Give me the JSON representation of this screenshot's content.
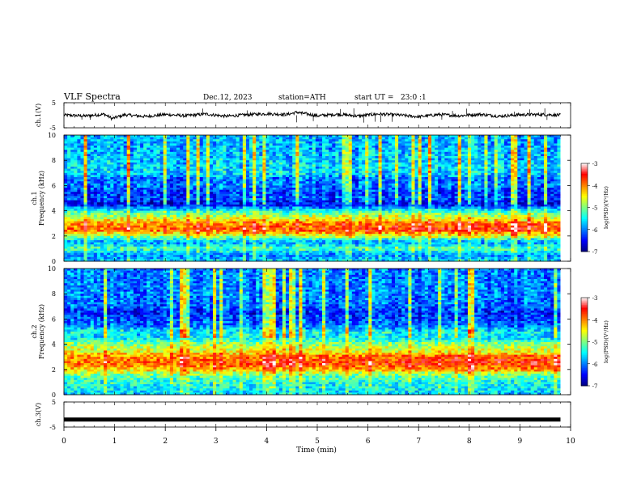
{
  "header": {
    "title": "VLF Spectra",
    "date": "Dec.12, 2023",
    "station": "station=ATH",
    "start_ut": "start UT =   23:0 :1"
  },
  "chart_data": [
    {
      "type": "line",
      "name": "ch1-waveform",
      "ylabel": "ch.1(V)",
      "ylim": [
        -5,
        5
      ],
      "yticks": [
        "5",
        "-5"
      ],
      "xlim": [
        0,
        10
      ],
      "x": [
        0,
        0.4,
        0.8,
        0.95,
        1.2,
        1.6,
        2.0,
        2.4,
        2.8,
        3.2,
        3.6,
        4.0,
        4.4,
        4.6,
        5.0,
        5.4,
        5.8,
        6.2,
        6.6,
        7.0,
        7.4,
        7.8,
        8.2,
        8.6,
        9.0,
        9.4,
        9.8
      ],
      "values": [
        0.1,
        -0.3,
        0.4,
        -1.3,
        0.2,
        -0.5,
        0.3,
        -0.2,
        0.5,
        -0.4,
        0.2,
        0.6,
        0.3,
        1.2,
        -0.2,
        0.4,
        -0.3,
        0.5,
        0.1,
        -0.6,
        0.3,
        -0.2,
        0.4,
        -0.4,
        0.2,
        0.3,
        0.1
      ]
    },
    {
      "type": "heatmap",
      "name": "ch1-spectrogram",
      "ylabel": "ch.1\nFrequency (kHz)",
      "ylim": [
        0,
        10
      ],
      "yticks": [
        "0",
        "2",
        "4",
        "6",
        "8",
        "10"
      ],
      "xlim": [
        0,
        9.8
      ],
      "colorbar": {
        "label": "log(PSD)(V²/Hz)",
        "range": [
          -7,
          -3
        ],
        "ticks": [
          "-3",
          "-4",
          "-5",
          "-6",
          "-7"
        ]
      },
      "freq_kHz": [
        0,
        0.5,
        1,
        1.5,
        2,
        2.5,
        3,
        3.5,
        4,
        4.5,
        5,
        5.5,
        6,
        6.5,
        7,
        8,
        9,
        10
      ],
      "log_psd": [
        -5.6,
        -6.0,
        -5.2,
        -5.9,
        -4.9,
        -3.9,
        -4.2,
        -4.7,
        -5.4,
        -6.6,
        -6.2,
        -6.3,
        -6.0,
        -6.1,
        -5.6,
        -5.7,
        -5.8,
        -5.8
      ]
    },
    {
      "type": "heatmap",
      "name": "ch2-spectrogram",
      "ylabel": "ch.2\nFrequency (kHz)",
      "ylim": [
        0,
        10
      ],
      "yticks": [
        "0",
        "2",
        "4",
        "6",
        "8",
        "10"
      ],
      "xlim": [
        0,
        9.8
      ],
      "colorbar": {
        "label": "log(PSD)(V²/Hz)",
        "range": [
          -7,
          -3
        ],
        "ticks": [
          "-3",
          "-4",
          "-5",
          "-6",
          "-7"
        ]
      },
      "freq_kHz": [
        0,
        0.5,
        1,
        1.5,
        2,
        2.5,
        3,
        3.5,
        4,
        4.5,
        5,
        5.5,
        6,
        6.5,
        7,
        8,
        9,
        10
      ],
      "log_psd": [
        -5.7,
        -5.5,
        -5.4,
        -5.1,
        -4.4,
        -3.9,
        -4.1,
        -4.6,
        -4.9,
        -5.6,
        -5.5,
        -6.1,
        -6.2,
        -6.4,
        -6.1,
        -6.0,
        -6.0,
        -6.0
      ]
    },
    {
      "type": "line",
      "name": "ch3-waveform",
      "ylabel": "ch.3(V)",
      "ylim": [
        -5,
        5
      ],
      "yticks": [
        "5",
        "-5"
      ],
      "xlim": [
        0,
        10
      ],
      "x": [
        0,
        9.8
      ],
      "values": [
        -2,
        -2
      ]
    }
  ],
  "xaxis": {
    "label": "Time (min)",
    "ticks": [
      "0",
      "1",
      "2",
      "3",
      "4",
      "5",
      "6",
      "7",
      "8",
      "9",
      "10"
    ]
  },
  "colors": {
    "colormap": [
      "#000080",
      "#0000ff",
      "#0080ff",
      "#00ffff",
      "#80ff80",
      "#ffff00",
      "#ff8000",
      "#ff0000",
      "#ffffff"
    ]
  }
}
